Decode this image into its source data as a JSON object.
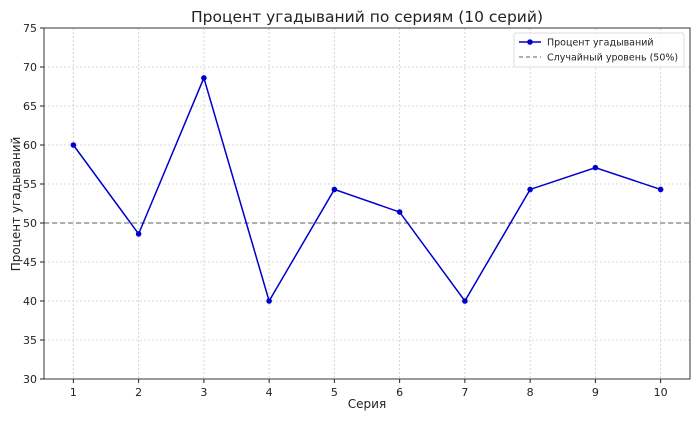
{
  "chart_data": {
    "type": "line",
    "title": "Процент угадываний по сериям (10 серий)",
    "xlabel": "Серия",
    "ylabel": "Процент угадываний",
    "x": [
      1,
      2,
      3,
      4,
      5,
      6,
      7,
      8,
      9,
      10
    ],
    "series": [
      {
        "name": "Процент угадываний",
        "values": [
          60.0,
          48.6,
          68.6,
          40.0,
          54.3,
          51.4,
          40.0,
          54.3,
          57.1,
          54.3
        ],
        "color": "#0000cc",
        "marker": "circle"
      }
    ],
    "reference_line": {
      "name": "Случайный уровень (50%)",
      "y": 50,
      "color": "#808080",
      "style": "dashed"
    },
    "xlim": [
      0.55,
      10.45
    ],
    "ylim": [
      30,
      75
    ],
    "xticks": [
      "1",
      "2",
      "3",
      "4",
      "5",
      "6",
      "7",
      "8",
      "9",
      "10"
    ],
    "yticks": [
      "30",
      "35",
      "40",
      "45",
      "50",
      "55",
      "60",
      "65",
      "70",
      "75"
    ],
    "grid": true,
    "legend_position": "top-right"
  }
}
